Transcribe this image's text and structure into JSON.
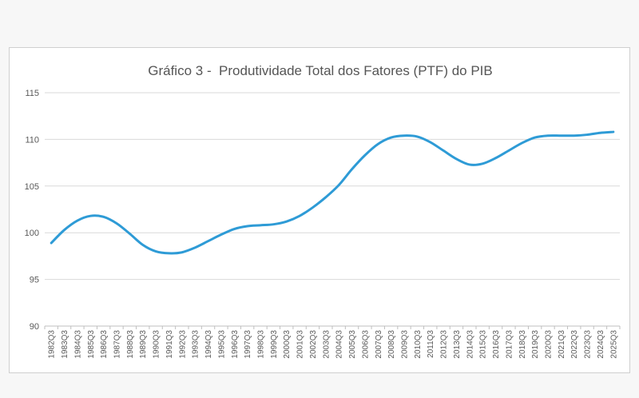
{
  "chart_data": {
    "type": "line",
    "title": "Gráfico 3 -  Produtividade Total dos Fatores (PTF) do PIB",
    "xlabel": "",
    "ylabel": "",
    "ylim": [
      90,
      115
    ],
    "yticks": [
      "90",
      "95",
      "100",
      "105",
      "110",
      "115"
    ],
    "grid": true,
    "legend": "none",
    "line_color": "#2e9bd6",
    "categories": [
      "1982Q3",
      "1983Q3",
      "1984Q3",
      "1985Q3",
      "1986Q3",
      "1987Q3",
      "1988Q3",
      "1989Q3",
      "1990Q3",
      "1991Q3",
      "1992Q3",
      "1993Q3",
      "1994Q3",
      "1995Q3",
      "1996Q3",
      "1997Q3",
      "1998Q3",
      "1999Q3",
      "2000Q3",
      "2001Q3",
      "2002Q3",
      "2003Q3",
      "2004Q3",
      "2005Q3",
      "2006Q3",
      "2007Q3",
      "2008Q3",
      "2009Q3",
      "2010Q3",
      "2011Q3",
      "2012Q3",
      "2013Q3",
      "2014Q3",
      "2015Q3",
      "2016Q3",
      "2017Q3",
      "2018Q3",
      "2019Q3",
      "2020Q3",
      "2021Q3",
      "2022Q3",
      "2023Q3",
      "2024Q3",
      "2025Q3"
    ],
    "series": [
      {
        "values": [
          98.9,
          100.3,
          101.3,
          101.8,
          101.7,
          101.0,
          99.9,
          98.7,
          98.0,
          97.8,
          97.9,
          98.4,
          99.1,
          99.8,
          100.4,
          100.7,
          100.8,
          100.9,
          101.2,
          101.8,
          102.7,
          103.8,
          105.1,
          106.8,
          108.3,
          109.5,
          110.2,
          110.4,
          110.3,
          109.7,
          108.8,
          107.9,
          107.3,
          107.4,
          108.0,
          108.8,
          109.6,
          110.2,
          110.4,
          110.4,
          110.4,
          110.5,
          110.7,
          110.8
        ]
      }
    ]
  }
}
